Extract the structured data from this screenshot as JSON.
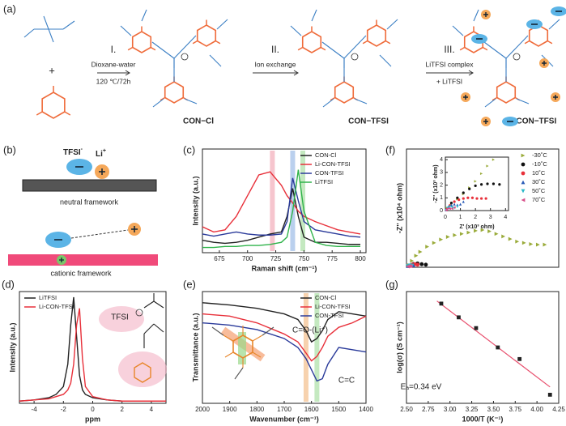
{
  "scheme": {
    "label": "(a)",
    "steps": [
      {
        "numeral": "I.",
        "above": "Dioxane-water",
        "below": "120 ℃/72h"
      },
      {
        "numeral": "II.",
        "above": "Ion exchange"
      },
      {
        "numeral": "III.",
        "above": "LiTFSI complex",
        "below": "+ LiTFSI"
      }
    ],
    "plus": "+",
    "products": [
      "CON−Cl",
      "CON−TFSI",
      "Li−CON−TFSI"
    ]
  },
  "model": {
    "label": "(b)",
    "anion": "TFSI",
    "anion_charge": "-",
    "cation": "Li",
    "cation_charge": "+",
    "frameworks": [
      "neutral framework",
      "cationic framework"
    ]
  },
  "chart_data": [
    {
      "type": "line",
      "label": "(c)",
      "x_label": "Raman shift (cm⁻¹)",
      "y_label": "Intensity (a.u.)",
      "xlim": [
        660,
        805
      ],
      "xticks": [
        675,
        700,
        725,
        750,
        775,
        800
      ],
      "ylim": [
        0,
        1
      ],
      "legend": "upper right",
      "highlights": [
        {
          "x": 722,
          "color": "#f4b6c2"
        },
        {
          "x": 740,
          "color": "#a9c4ea"
        },
        {
          "x": 749,
          "color": "#b5e3b0"
        }
      ],
      "x": [
        660,
        670,
        680,
        690,
        700,
        710,
        720,
        730,
        735,
        740,
        745,
        750,
        760,
        770,
        780,
        790,
        800
      ],
      "series": [
        {
          "name": "CON-Cl",
          "color": "#222222",
          "values": [
            0.12,
            0.1,
            0.09,
            0.1,
            0.12,
            0.15,
            0.18,
            0.2,
            0.35,
            0.62,
            0.35,
            0.15,
            0.1,
            0.1,
            0.09,
            0.08,
            0.08
          ]
        },
        {
          "name": "Li-CON-TFSI",
          "color": "#e8303a",
          "values": [
            0.25,
            0.2,
            0.22,
            0.35,
            0.55,
            0.75,
            0.78,
            0.65,
            0.55,
            0.48,
            0.4,
            0.35,
            0.3,
            0.26,
            0.22,
            0.2,
            0.18
          ]
        },
        {
          "name": "CON-TFSI",
          "color": "#2a3a9a",
          "values": [
            0.18,
            0.16,
            0.18,
            0.2,
            0.18,
            0.17,
            0.17,
            0.18,
            0.3,
            0.72,
            0.5,
            0.3,
            0.22,
            0.2,
            0.18,
            0.16,
            0.15
          ]
        },
        {
          "name": "LiTFSI",
          "color": "#2fb34a",
          "values": [
            0.05,
            0.05,
            0.06,
            0.06,
            0.07,
            0.07,
            0.08,
            0.1,
            0.15,
            0.4,
            0.8,
            0.4,
            0.1,
            0.07,
            0.06,
            0.06,
            0.06
          ]
        }
      ]
    },
    {
      "type": "line",
      "label": "(d)",
      "x_label": "ppm",
      "y_label": "Intensity (a.u.)",
      "xlim": [
        -5,
        5
      ],
      "xticks": [
        -4,
        -2,
        0,
        2,
        4
      ],
      "ylim": [
        0,
        1
      ],
      "legend": "upper left",
      "annotations": [
        {
          "text": "TFSI",
          "color": "#333333"
        }
      ],
      "x": [
        -5,
        -4,
        -3,
        -2.5,
        -2,
        -1.7,
        -1.5,
        -1.3,
        -1.1,
        -0.9,
        -0.7,
        -0.5,
        0,
        1,
        2,
        3,
        4,
        5
      ],
      "series": [
        {
          "name": "LiTFSI",
          "color": "#222222",
          "values": [
            0.02,
            0.03,
            0.05,
            0.08,
            0.15,
            0.35,
            0.7,
            0.95,
            0.6,
            0.25,
            0.12,
            0.08,
            0.05,
            0.03,
            0.02,
            0.02,
            0.02,
            0.02
          ]
        },
        {
          "name": "Li-CON-TFSI",
          "color": "#e8303a",
          "values": [
            0.02,
            0.03,
            0.04,
            0.06,
            0.08,
            0.12,
            0.18,
            0.35,
            0.7,
            0.85,
            0.4,
            0.15,
            0.06,
            0.03,
            0.02,
            0.02,
            0.02,
            0.02
          ]
        }
      ]
    },
    {
      "type": "line",
      "label": "(e)",
      "x_label": "Wavenumber (cm⁻¹)",
      "y_label": "Transmittance (a.u.)",
      "xlim": [
        2000,
        1400
      ],
      "xticks": [
        2000,
        1900,
        1800,
        1700,
        1600,
        1500,
        1400
      ],
      "ylim": [
        0,
        1
      ],
      "legend": "upper right",
      "highlights": [
        {
          "x": 1620,
          "color": "#f5c79a"
        },
        {
          "x": 1580,
          "color": "#b5e3b0"
        }
      ],
      "annotations": [
        {
          "text": "C=O-(Li⁺)",
          "color": "#e8862a"
        },
        {
          "text": "C=C",
          "color": "#3aa53a"
        }
      ],
      "x": [
        2000,
        1900,
        1800,
        1700,
        1650,
        1620,
        1600,
        1580,
        1560,
        1540,
        1500,
        1450,
        1400
      ],
      "series": [
        {
          "name": "CON-Cl",
          "color": "#222222",
          "values": [
            0.9,
            0.88,
            0.85,
            0.8,
            0.75,
            0.65,
            0.55,
            0.58,
            0.65,
            0.75,
            0.82,
            0.8,
            0.78
          ]
        },
        {
          "name": "Li-CON-TFSI",
          "color": "#e8303a",
          "values": [
            0.8,
            0.78,
            0.72,
            0.62,
            0.55,
            0.45,
            0.38,
            0.42,
            0.5,
            0.6,
            0.68,
            0.72,
            0.78
          ]
        },
        {
          "name": "CON-TFSI",
          "color": "#2a3a9a",
          "values": [
            0.72,
            0.7,
            0.66,
            0.58,
            0.5,
            0.4,
            0.3,
            0.2,
            0.22,
            0.35,
            0.5,
            0.48,
            0.46
          ]
        }
      ]
    },
    {
      "type": "scatter",
      "label": "(f)",
      "y_label": "-Z'' (x10⁴ ohm)",
      "xlim": [
        0,
        11
      ],
      "ylim": [
        0,
        4.6
      ],
      "legend": "upper right",
      "series": [
        {
          "name": "-30˚C",
          "color": "#9aab3a",
          "marker": "tri-right",
          "x": [
            0.2,
            0.4,
            0.7,
            1,
            1.5,
            2,
            2.5,
            3,
            3.5,
            4,
            4.5,
            5,
            5.5,
            6,
            6.5,
            7,
            7.5,
            8,
            8.5,
            9,
            9.5,
            10
          ],
          "values": [
            0.08,
            0.25,
            0.45,
            0.6,
            0.8,
            0.95,
            1.08,
            1.18,
            1.25,
            1.3,
            1.35,
            1.42,
            1.45,
            1.4,
            1.3,
            1.2,
            1.1,
            1.0,
            0.95,
            0.9,
            0.88,
            0.88
          ]
        },
        {
          "name": "-10˚C",
          "color": "#111111",
          "marker": "circle",
          "x": [
            0.2,
            0.5,
            0.8,
            1.1,
            1.4
          ],
          "values": [
            0.05,
            0.12,
            0.15,
            0.12,
            0.1
          ]
        },
        {
          "name": "10˚C",
          "color": "#e8303a",
          "marker": "circle",
          "x": [
            0.2,
            0.4,
            0.6,
            0.8
          ],
          "values": [
            0.05,
            0.1,
            0.12,
            0.1
          ]
        },
        {
          "name": "30˚C",
          "color": "#2a5bb8",
          "marker": "tri-up",
          "x": [
            0.1,
            0.3,
            0.5
          ],
          "values": [
            0.05,
            0.1,
            0.08
          ]
        },
        {
          "name": "50˚C",
          "color": "#2ab8c8",
          "marker": "tri-down",
          "x": [
            0.1,
            0.25,
            0.4
          ],
          "values": [
            0.04,
            0.07,
            0.06
          ]
        },
        {
          "name": "70˚C",
          "color": "#d8508a",
          "marker": "tri-left",
          "x": [
            0.1,
            0.2,
            0.3
          ],
          "values": [
            0.03,
            0.05,
            0.04
          ]
        }
      ]
    },
    {
      "type": "scatter",
      "x_label": "Z' (x10³ ohm)",
      "y_label": "-Z'' (x10³ ohm)",
      "xlim": [
        0,
        4.2
      ],
      "xticks": [
        0,
        1,
        2,
        3,
        4
      ],
      "ylim": [
        0,
        4.2
      ],
      "yticks": [
        0,
        1,
        2,
        3,
        4
      ],
      "series": [
        {
          "color": "#9aab3a",
          "marker": "tri-right",
          "x": [
            0.1,
            0.4,
            0.8,
            1.2,
            1.6,
            2,
            2.4,
            2.8,
            3.2
          ],
          "values": [
            0.2,
            0.5,
            0.9,
            1.3,
            1.8,
            2.3,
            2.9,
            3.5,
            4.0
          ]
        },
        {
          "color": "#111111",
          "marker": "circle",
          "x": [
            0.1,
            0.4,
            0.8,
            1.2,
            1.6,
            2,
            2.4,
            2.8,
            3.2,
            3.6
          ],
          "values": [
            0.1,
            0.6,
            1.0,
            1.4,
            1.7,
            1.95,
            2.05,
            2.1,
            2.1,
            2.05
          ]
        },
        {
          "color": "#e8303a",
          "marker": "circle",
          "x": [
            0.1,
            0.3,
            0.6,
            0.9,
            1.2,
            1.5,
            1.8,
            2.1,
            2.4,
            2.7
          ],
          "values": [
            0.1,
            0.4,
            0.7,
            0.85,
            0.95,
            1.0,
            1.0,
            0.95,
            0.95,
            0.95
          ]
        },
        {
          "color": "#2a5bb8",
          "marker": "tri-up",
          "x": [
            0.05,
            0.2,
            0.4,
            0.6,
            0.8,
            1.0,
            1.2
          ],
          "values": [
            0.05,
            0.3,
            0.45,
            0.5,
            0.45,
            0.5,
            0.7
          ]
        },
        {
          "color": "#2ab8c8",
          "marker": "tri-down",
          "x": [
            0.05,
            0.15,
            0.3,
            0.45,
            0.6,
            0.8
          ],
          "values": [
            0.03,
            0.2,
            0.3,
            0.25,
            0.2,
            0.3
          ]
        },
        {
          "color": "#d8508a",
          "marker": "tri-left",
          "x": [
            0.05,
            0.1,
            0.2,
            0.3,
            0.45,
            0.6
          ],
          "values": [
            0.02,
            0.12,
            0.18,
            0.15,
            0.15,
            0.25
          ]
        }
      ]
    },
    {
      "type": "scatter",
      "label": "(g)",
      "x_label": "1000/T (K⁻¹)",
      "y_label": "log(σ) (S cm⁻¹)",
      "xlim": [
        2.5,
        4.25
      ],
      "xticks": [
        {
          "value": 2.5,
          "label": "2.50"
        },
        {
          "value": 2.75,
          "label": "2.75"
        },
        {
          "value": 3,
          "label": "3.00"
        },
        {
          "value": 3.25,
          "label": "3.25"
        },
        {
          "value": 3.5,
          "label": "3.50"
        },
        {
          "value": 3.75,
          "label": "3.75"
        },
        {
          "value": 4,
          "label": "4.00"
        },
        {
          "value": 4.25,
          "label": "4.25"
        }
      ],
      "ylim": [
        -6,
        -3.4
      ],
      "series": [
        {
          "color": "#222222",
          "marker": "square",
          "x": [
            2.9,
            3.1,
            3.3,
            3.55,
            3.8,
            4.15
          ],
          "values": [
            -3.68,
            -4.0,
            -4.25,
            -4.7,
            -4.97,
            -5.8
          ]
        }
      ],
      "fit": {
        "color": "#e8506e",
        "x": [
          2.85,
          4.15
        ],
        "values": [
          -3.62,
          -5.62
        ]
      },
      "annotations": [
        {
          "text": "Eₐ=0.34 eV",
          "color": "#222222"
        }
      ]
    }
  ]
}
